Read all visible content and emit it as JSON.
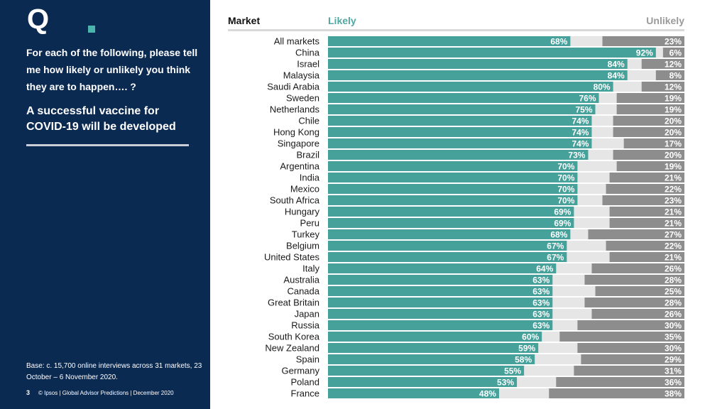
{
  "logo": {
    "letter": "Q"
  },
  "sidebar": {
    "question": "For each of the following, please tell me how likely or unlikely you think they are to happen…. ?",
    "subject": "A successful vaccine for COVID-19 will be developed",
    "base": "Base: c. 15,700 online interviews across 31 markets, 23 October – 6 November 2020.",
    "page_number": "3",
    "footer": "© Ipsos | Global Advisor Predictions | December 2020"
  },
  "header": {
    "market": "Market",
    "likely": "Likely",
    "unlikely": "Unlikely"
  },
  "colors": {
    "sidebar": "#0b2a52",
    "likely": "#46a19b",
    "neutral": "#e6e6e6",
    "unlikely": "#8d8d8d",
    "header_rule": "#d9d9d9"
  },
  "chart_data": {
    "type": "bar",
    "orientation": "horizontal-stacked",
    "unit": "%",
    "categories": [
      "All markets",
      "China",
      "Israel",
      "Malaysia",
      "Saudi Arabia",
      "Sweden",
      "Netherlands",
      "Chile",
      "Hong Kong",
      "Singapore",
      "Brazil",
      "Argentina",
      "India",
      "Mexico",
      "South Africa",
      "Hungary",
      "Peru",
      "Turkey",
      "Belgium",
      "United States",
      "Italy",
      "Australia",
      "Canada",
      "Great Britain",
      "Japan",
      "Russia",
      "South Korea",
      "New Zealand",
      "Spain",
      "Germany",
      "Poland",
      "France"
    ],
    "series": [
      {
        "name": "Likely",
        "values": [
          68,
          92,
          84,
          84,
          80,
          76,
          75,
          74,
          74,
          74,
          73,
          70,
          70,
          70,
          70,
          69,
          69,
          68,
          67,
          67,
          64,
          63,
          63,
          63,
          63,
          63,
          60,
          59,
          58,
          55,
          53,
          48
        ]
      },
      {
        "name": "Unlikely",
        "values": [
          23,
          6,
          12,
          8,
          12,
          19,
          19,
          20,
          20,
          17,
          20,
          19,
          21,
          22,
          23,
          21,
          21,
          27,
          22,
          21,
          26,
          28,
          25,
          28,
          26,
          30,
          35,
          30,
          29,
          31,
          36,
          38
        ]
      }
    ],
    "xlim": [
      0,
      100
    ]
  }
}
